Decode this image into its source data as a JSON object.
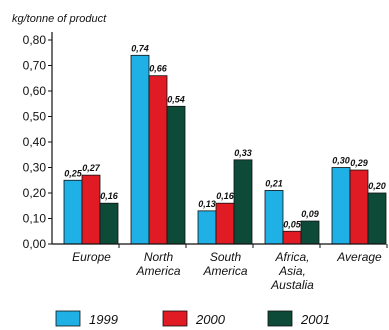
{
  "chart_data": {
    "type": "bar",
    "title": "",
    "ylabel": "kg/tonne of product",
    "xlabel": "",
    "ylim": [
      0,
      0.8
    ],
    "yticks": [
      "0,00",
      "0,10",
      "0,20",
      "0,30",
      "0,40",
      "0,50",
      "0,60",
      "0,70",
      "0,80"
    ],
    "grid": false,
    "legend_position": "bottom",
    "categories": [
      [
        "Europe"
      ],
      [
        "North",
        "America"
      ],
      [
        "South",
        "America"
      ],
      [
        "Africa,",
        "Asia,",
        "Austalia"
      ],
      [
        "Average"
      ]
    ],
    "series": [
      {
        "name": "1999",
        "color": "#1fb1e6",
        "values": [
          0.25,
          0.74,
          0.13,
          0.21,
          0.3
        ],
        "labels": [
          "0,25",
          "0,74",
          "0,13",
          "0,21",
          "0,30"
        ]
      },
      {
        "name": "2000",
        "color": "#e01b24",
        "values": [
          0.27,
          0.66,
          0.16,
          0.05,
          0.29
        ],
        "labels": [
          "0,27",
          "0,66",
          "0,16",
          "0,05",
          "0,29"
        ]
      },
      {
        "name": "2001",
        "color": "#0d4a38",
        "values": [
          0.16,
          0.54,
          0.33,
          0.09,
          0.2
        ],
        "labels": [
          "0,16",
          "0,54",
          "0,33",
          "0,09",
          "0,20"
        ]
      }
    ]
  }
}
